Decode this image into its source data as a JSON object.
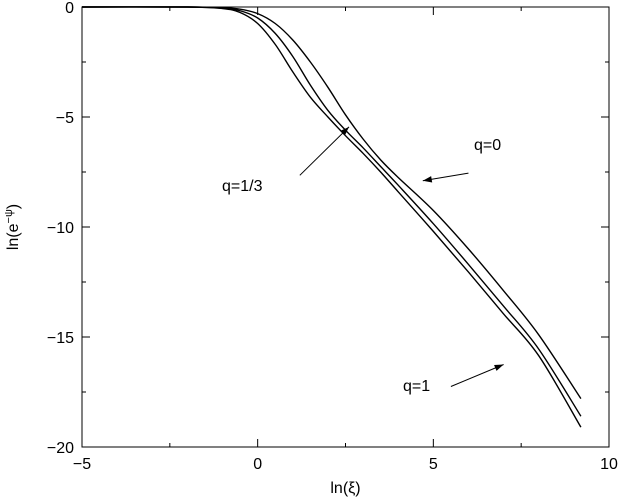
{
  "chart_data": {
    "type": "line",
    "xlabel": "ln(ξ)",
    "ylabel_base": "ln(e",
    "ylabel_sup": "−ψ",
    "ylabel_close": ")",
    "xlim": [
      -5,
      10
    ],
    "ylim": [
      -20,
      0
    ],
    "xticks": [
      -5,
      0,
      5,
      10
    ],
    "yticks": [
      0,
      -5,
      -10,
      -15,
      -20
    ],
    "xtick_labels": [
      "−5",
      "0",
      "5",
      "10"
    ],
    "ytick_labels": [
      "0",
      "−5",
      "−10",
      "−15",
      "−20"
    ],
    "grid": false,
    "series": [
      {
        "name": "q=0",
        "x": [
          -5.0,
          -2.0,
          -1.0,
          -0.5,
          0.0,
          0.5,
          1.0,
          1.5,
          2.0,
          2.5,
          3.0,
          3.5,
          4.0,
          5.0,
          6.0,
          7.0,
          8.0,
          9.2
        ],
        "y": [
          0.0,
          0.0,
          -0.03,
          -0.1,
          -0.3,
          -0.75,
          -1.5,
          -2.5,
          -3.65,
          -4.9,
          -6.0,
          -6.95,
          -7.75,
          -9.25,
          -11.0,
          -12.9,
          -14.9,
          -17.8
        ]
      },
      {
        "name": "q=1/3",
        "x": [
          -5.0,
          -2.0,
          -1.0,
          -0.5,
          0.0,
          0.5,
          1.0,
          1.5,
          2.0,
          2.5,
          3.0,
          3.5,
          4.0,
          5.0,
          6.0,
          7.0,
          8.0,
          9.2
        ],
        "y": [
          0.0,
          0.0,
          -0.05,
          -0.17,
          -0.5,
          -1.2,
          -2.25,
          -3.55,
          -4.7,
          -5.6,
          -6.4,
          -7.25,
          -8.1,
          -9.85,
          -11.7,
          -13.6,
          -15.55,
          -18.6
        ]
      },
      {
        "name": "q=1",
        "x": [
          -5.0,
          -2.0,
          -1.0,
          -0.5,
          0.0,
          0.5,
          1.0,
          1.5,
          2.0,
          2.5,
          3.0,
          3.5,
          4.0,
          5.0,
          6.0,
          7.0,
          8.0,
          9.2
        ],
        "y": [
          0.0,
          0.0,
          -0.07,
          -0.25,
          -0.75,
          -1.7,
          -2.95,
          -4.1,
          -5.0,
          -5.85,
          -6.65,
          -7.5,
          -8.4,
          -10.2,
          -12.05,
          -13.95,
          -15.85,
          -19.1
        ]
      }
    ],
    "annotations": [
      {
        "text": "q=0",
        "arrow_from": [
          6.0,
          -7.55
        ],
        "arrow_to": [
          4.7,
          -7.9
        ]
      },
      {
        "text": "q=1/3",
        "arrow_from": [
          1.2,
          -7.65
        ],
        "arrow_to": [
          2.6,
          -5.45
        ]
      },
      {
        "text": "q=1",
        "arrow_from": [
          5.5,
          -17.25
        ],
        "arrow_to": [
          7.0,
          -16.25
        ]
      }
    ]
  }
}
